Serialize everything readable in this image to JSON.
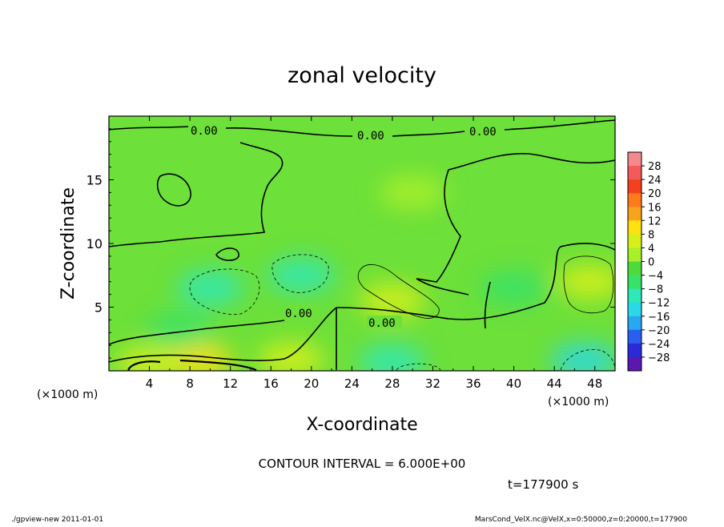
{
  "chart_data": {
    "type": "heatmap",
    "title": "zonal velocity",
    "xlabel": "X-coordinate",
    "ylabel": "Z-coordinate",
    "x_unit": "(×1000 m)",
    "y_unit": "(×1000 m)",
    "xlim": [
      0,
      50
    ],
    "ylim": [
      0,
      20
    ],
    "x_ticks": [
      "4",
      "8",
      "12",
      "16",
      "20",
      "24",
      "28",
      "32",
      "36",
      "40",
      "44",
      "48"
    ],
    "y_ticks": [
      "5",
      "10",
      "15"
    ],
    "colorbar_labels": [
      "28",
      "24",
      "20",
      "16",
      "12",
      "8",
      "4",
      "0",
      "−4",
      "−8",
      "−12",
      "−16",
      "−20",
      "−24",
      "−28"
    ],
    "colorbar_colors": [
      "#f4888f",
      "#f35a5a",
      "#f3401e",
      "#ff7a1a",
      "#f7a41a",
      "#ffe010",
      "#d8f01a",
      "#a8f02a",
      "#4fda3a",
      "#37e26a",
      "#2ee8b8",
      "#2ad8e6",
      "#28a8f0",
      "#2a5ef0",
      "#2a2ad8",
      "#5a18b0"
    ],
    "contour_labels": [
      "0.00",
      "0.00",
      "0.00",
      "0.00",
      "0.00"
    ],
    "contour_interval_text": "CONTOUR INTERVAL = 6.000E+00",
    "time_text": "t=177900 s",
    "anomalies": [
      {
        "x": 9,
        "z": 0.8,
        "value": 10
      },
      {
        "x": 4,
        "z": 0.6,
        "value": 6
      },
      {
        "x": 18,
        "z": 0.9,
        "value": 7
      },
      {
        "x": 10,
        "z": 6.5,
        "value": -9
      },
      {
        "x": 19,
        "z": 7.5,
        "value": -9
      },
      {
        "x": 28,
        "z": 0.7,
        "value": -8
      },
      {
        "x": 47,
        "z": 0.8,
        "value": -13
      },
      {
        "x": 47.5,
        "z": 7,
        "value": 6
      },
      {
        "x": 28,
        "z": 5.5,
        "value": 5
      },
      {
        "x": 7,
        "z": 3.2,
        "value": -5
      },
      {
        "x": 40,
        "z": 6.5,
        "value": -4
      },
      {
        "x": 30,
        "z": 14,
        "value": 2
      }
    ]
  },
  "footer": {
    "left": "./gpview-new  2011-01-01",
    "right": "MarsCond_VelX.nc@VelX,x=0:50000,z=0:20000,t=177900"
  }
}
